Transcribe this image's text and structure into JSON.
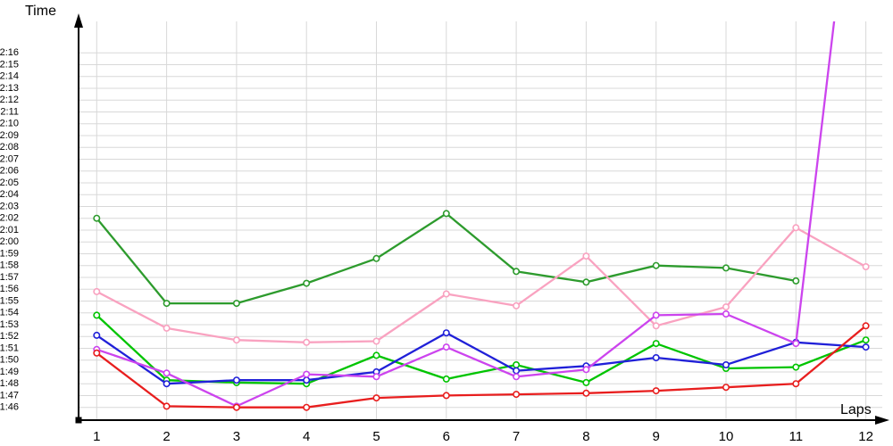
{
  "chart_title_y": "Time",
  "chart_title_x": "Laps",
  "chart_data": {
    "type": "line",
    "xlabel": "Laps",
    "ylabel": "Time",
    "x": [
      1,
      2,
      3,
      4,
      5,
      6,
      7,
      8,
      9,
      10,
      11,
      12
    ],
    "x_tick_labels": [
      "1",
      "2",
      "3",
      "4",
      "5",
      "6",
      "7",
      "8",
      "9",
      "10",
      "11",
      "12"
    ],
    "y_tick_labels": [
      "1:46",
      "1:47",
      "1:48",
      "1:49",
      "1:50",
      "1:51",
      "1:52",
      "1:53",
      "1:54",
      "1:55",
      "1:56",
      "1:57",
      "1:58",
      "1:59",
      "2:00",
      "2:01",
      "2:02",
      "2:03",
      "2:04",
      "2:05",
      "2:06",
      "2:07",
      "2:08",
      "2:09",
      "2:10",
      "2:11",
      "2:12",
      "2:13",
      "2:14",
      "2:15",
      "2:16"
    ],
    "y_axis_min_label": "1:46",
    "y_axis_max_label": "2:16",
    "y_axis_baseline_sec": 105,
    "grid": true,
    "legend": "none",
    "series": [
      {
        "name": "dark-green",
        "color": "#2d9b2d",
        "laps_completed": 11,
        "values": [
          "2:02.0",
          "1:54.8",
          "1:54.8",
          "1:56.5",
          "1:58.6",
          "2:02.4",
          "1:57.5",
          "1:56.6",
          "1:58.0",
          "1:57.8",
          "1:56.7",
          null
        ],
        "values_sec": [
          122.0,
          114.8,
          114.8,
          116.5,
          118.6,
          122.4,
          117.5,
          116.6,
          118.0,
          117.8,
          116.7,
          null
        ]
      },
      {
        "name": "pink",
        "color": "#f9a2c0",
        "laps_completed": 12,
        "values": [
          "1:55.8",
          "1:52.7",
          "1:51.7",
          "1:51.5",
          "1:51.6",
          "1:55.6",
          "1:54.6",
          "1:58.8",
          "1:52.9",
          "1:54.5",
          "2:01.2",
          "1:57.9"
        ],
        "values_sec": [
          115.8,
          112.7,
          111.7,
          111.5,
          111.6,
          115.6,
          114.6,
          118.8,
          112.9,
          114.5,
          121.2,
          117.9
        ]
      },
      {
        "name": "bright-green",
        "color": "#00c400",
        "laps_completed": 12,
        "values": [
          "1:53.8",
          "1:48.3",
          "1:48.1",
          "1:48.0",
          "1:50.4",
          "1:48.4",
          "1:49.6",
          "1:48.1",
          "1:51.4",
          "1:49.3",
          "1:49.4",
          "1:51.7"
        ],
        "values_sec": [
          113.8,
          108.3,
          108.1,
          108.0,
          110.4,
          108.4,
          109.6,
          108.1,
          111.4,
          109.3,
          109.4,
          111.7
        ]
      },
      {
        "name": "blue",
        "color": "#2020d8",
        "laps_completed": 12,
        "values": [
          "1:52.1",
          "1:48.0",
          "1:48.3",
          "1:48.3",
          "1:49.0",
          "1:52.3",
          "1:49.1",
          "1:49.5",
          "1:50.2",
          "1:49.6",
          "1:51.5",
          "1:51.1"
        ],
        "values_sec": [
          112.1,
          108.0,
          108.3,
          108.3,
          109.0,
          112.3,
          109.1,
          109.5,
          110.2,
          109.6,
          111.5,
          111.1
        ]
      },
      {
        "name": "violet",
        "color": "#cc44ee",
        "laps_completed": 12,
        "last_point_off_chart": true,
        "values": [
          "1:50.9",
          "1:48.9",
          "1:46.1",
          "1:48.8",
          "1:48.6",
          "1:51.1",
          "1:48.6",
          "1:49.2",
          "1:53.8",
          "1:53.9",
          "1:51.4",
          "off-chart (>2:16, est ~2:41)"
        ],
        "values_sec": [
          110.9,
          108.9,
          106.1,
          108.8,
          108.6,
          111.1,
          108.6,
          109.2,
          113.8,
          113.9,
          111.4,
          161.3
        ]
      },
      {
        "name": "red",
        "color": "#e81e1e",
        "laps_completed": 12,
        "values": [
          "1:50.6",
          "1:46.1",
          "1:46.0",
          "1:46.0",
          "1:46.8",
          "1:47.0",
          "1:47.1",
          "1:47.2",
          "1:47.4",
          "1:47.7",
          "1:48.0",
          "1:52.9"
        ],
        "values_sec": [
          110.6,
          106.1,
          106.0,
          106.0,
          106.8,
          107.0,
          107.1,
          107.2,
          107.4,
          107.7,
          108.0,
          112.9
        ]
      }
    ],
    "colors": {
      "grid": "#d8d8d8",
      "axis": "#000000",
      "background": "#ffffff",
      "marker_fill": "#ffffff"
    }
  }
}
